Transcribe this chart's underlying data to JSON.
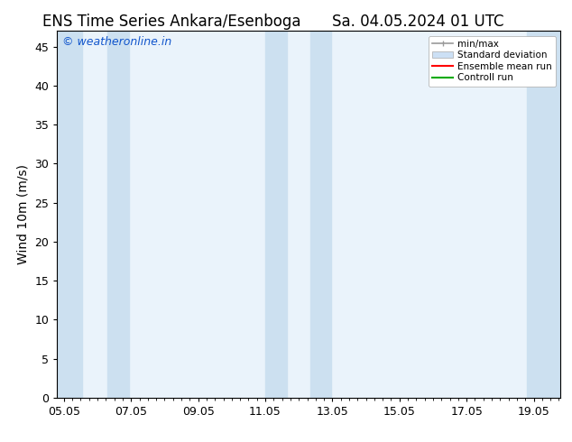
{
  "title_left": "ENS Time Series Ankara/Esenboga",
  "title_right": "Sa. 04.05.2024 01 UTC",
  "ylabel": "Wind 10m (m/s)",
  "watermark": "© weatheronline.in",
  "watermark_color": "#1155cc",
  "bg_color": "#ffffff",
  "plot_bg_color": "#eaf3fb",
  "band_color": "#cce0f0",
  "ylim": [
    0,
    47
  ],
  "yticks": [
    0,
    5,
    10,
    15,
    20,
    25,
    30,
    35,
    40,
    45
  ],
  "xtick_labels": [
    "05.05",
    "07.05",
    "09.05",
    "11.05",
    "13.05",
    "15.05",
    "17.05",
    "19.05"
  ],
  "xtick_positions": [
    0,
    2,
    4,
    6,
    8,
    10,
    12,
    14
  ],
  "xlim": [
    -0.2,
    14.8
  ],
  "shaded_bands_x": [
    [
      -0.2,
      0.55
    ],
    [
      1.3,
      1.95
    ],
    [
      6.0,
      6.65
    ],
    [
      7.35,
      7.95
    ],
    [
      13.8,
      14.8
    ]
  ],
  "legend_labels": [
    "min/max",
    "Standard deviation",
    "Ensemble mean run",
    "Controll run"
  ],
  "legend_colors_std": "#cce0f5",
  "legend_color_ens": "#ff0000",
  "legend_color_ctrl": "#00aa00",
  "legend_color_minmax": "#999999",
  "title_fontsize": 12,
  "axis_fontsize": 10,
  "tick_fontsize": 9,
  "watermark_fontsize": 9
}
